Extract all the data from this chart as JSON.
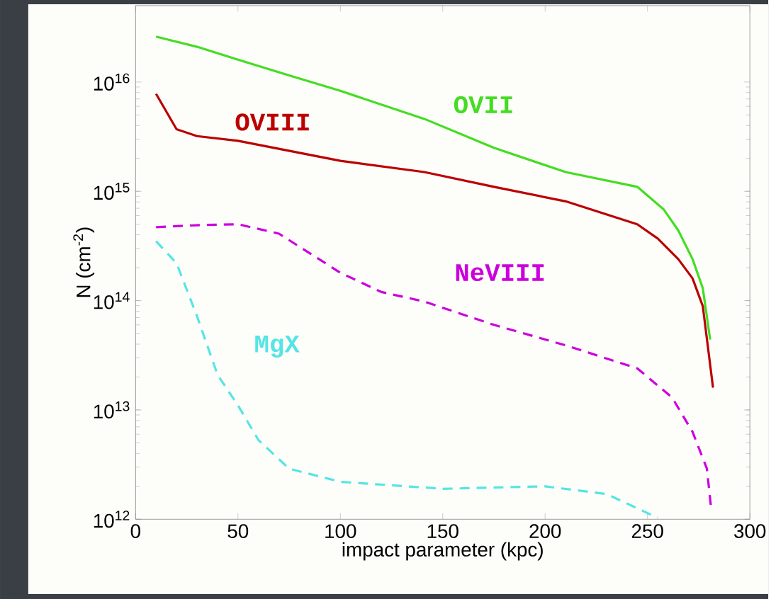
{
  "chart_data": {
    "type": "line",
    "xlabel": "impact parameter (kpc)",
    "ylabel": "N (cm$^{-2}$)",
    "log": "y",
    "xlim": [
      0,
      300
    ],
    "ylim": [
      1000000000000.0,
      5e+16
    ],
    "xticks": [
      0,
      50,
      100,
      150,
      200,
      250,
      300
    ],
    "yticks": [
      {
        "value": 1000000000000.0,
        "label": "10$^{12}$"
      },
      {
        "value": 10000000000000.0,
        "label": "10$^{13}$"
      },
      {
        "value": 100000000000000.0,
        "label": "10$^{14}$"
      },
      {
        "value": 1000000000000000.0,
        "label": "10$^{15}$"
      },
      {
        "value": 1e+16,
        "label": "10$^{16}$"
      }
    ],
    "grid": false,
    "legend": false,
    "series": [
      {
        "name": "OVII",
        "color": "#44dd22",
        "line_style": "solid",
        "x": [
          10,
          30,
          50,
          75,
          100,
          141,
          175,
          210,
          245,
          258,
          265,
          272,
          277,
          280.6
        ],
        "values": [
          2.6e+16,
          2.1e+16,
          1.6e+16,
          1.15e+16,
          8300000000000000.0,
          4600000000000000.0,
          2500000000000000.0,
          1500000000000000.0,
          1100000000000000.0,
          680000000000000.0,
          440000000000000.0,
          240000000000000.0,
          130000000000000.0,
          44000000000000.0
        ]
      },
      {
        "name": "OVIII",
        "color": "#bb0000",
        "line_style": "solid",
        "x": [
          10,
          20,
          30,
          50,
          100,
          141,
          175,
          210,
          245,
          255,
          265,
          272,
          277,
          282
        ],
        "values": [
          7800000000000000.0,
          3700000000000000.0,
          3200000000000000.0,
          2900000000000000.0,
          1900000000000000.0,
          1500000000000000.0,
          1100000000000000.0,
          810000000000000.0,
          500000000000000.0,
          370000000000000.0,
          240000000000000.0,
          160000000000000.0,
          89000000000000.0,
          16000000000000.0
        ]
      },
      {
        "name": "NeVIII",
        "color": "#cc00dd",
        "line_style": "dashed",
        "x": [
          10,
          30,
          50,
          70,
          100,
          120,
          141,
          175,
          210,
          245,
          262,
          272,
          279,
          281
        ],
        "values": [
          470000000000000.0,
          490000000000000.0,
          500000000000000.0,
          410000000000000.0,
          180000000000000.0,
          120000000000000.0,
          98000000000000.0,
          60000000000000.0,
          39000000000000.0,
          24000000000000.0,
          13000000000000.0,
          6300000000000.0,
          2900000000000.0,
          1300000000000.0
        ]
      },
      {
        "name": "MgX",
        "color": "#55e5e5",
        "line_style": "dashed",
        "x": [
          10,
          20,
          30,
          40,
          50,
          60,
          75,
          100,
          150,
          200,
          230,
          255
        ],
        "values": [
          350000000000000.0,
          220000000000000.0,
          72000000000000.0,
          21000000000000.0,
          11000000000000.0,
          5300000000000.0,
          2900000000000.0,
          2200000000000.0,
          1900000000000.0,
          2000000000000.0,
          1700000000000.0,
          1030000000000.0
        ]
      }
    ]
  }
}
